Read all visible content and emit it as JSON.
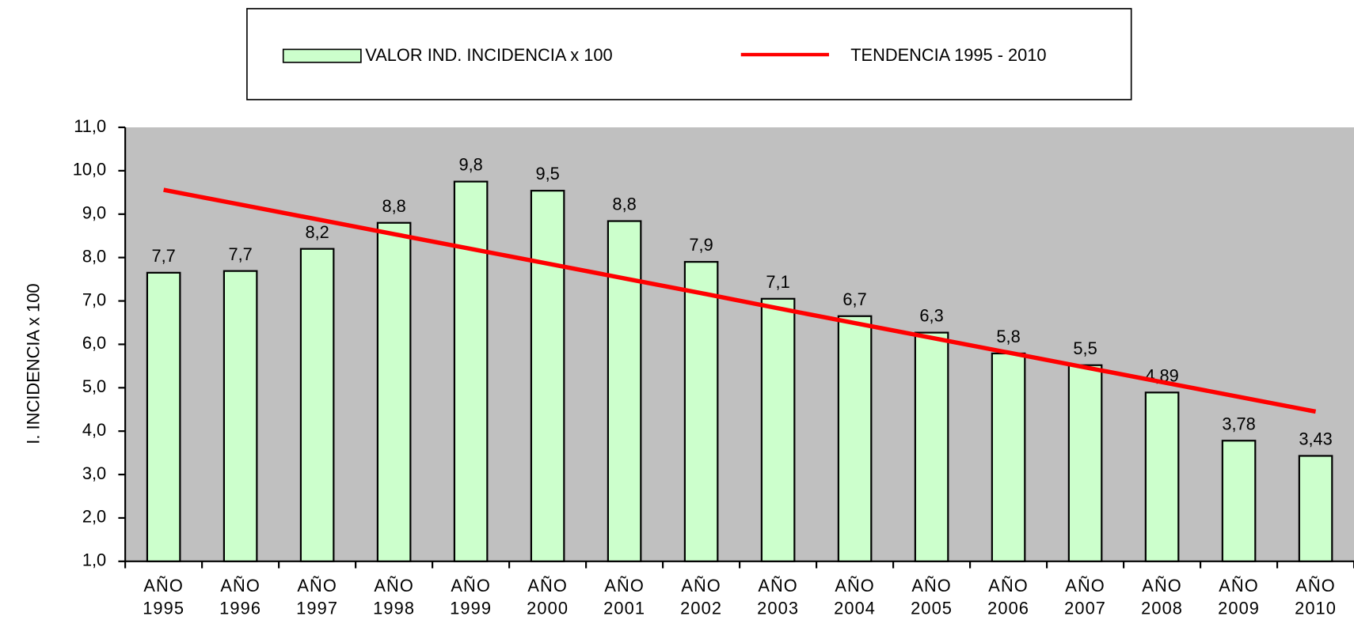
{
  "chart_data": {
    "type": "bar",
    "y_label": "I. INCIDENCIA x 100",
    "categories": [
      "AÑO 1995",
      "AÑO 1996",
      "AÑO 1997",
      "AÑO 1998",
      "AÑO 1999",
      "AÑO 2000",
      "AÑO 2001",
      "AÑO 2002",
      "AÑO 2003",
      "AÑO 2004",
      "AÑO 2005",
      "AÑO 2006",
      "AÑO 2007",
      "AÑO 2008",
      "AÑO 2009",
      "AÑO 2010"
    ],
    "series": [
      {
        "name": "VALOR IND. INCIDENCIA x 100",
        "type": "bar",
        "color": "#ccffcc",
        "values": [
          7.65,
          7.69,
          8.2,
          8.8,
          9.75,
          9.54,
          8.84,
          7.9,
          7.05,
          6.65,
          6.27,
          5.79,
          5.52,
          4.89,
          3.78,
          3.43
        ],
        "value_labels": [
          "7,7",
          "7,7",
          "8,2",
          "8,8",
          "9,8",
          "9,5",
          "8,8",
          "7,9",
          "7,1",
          "6,7",
          "6,3",
          "5,8",
          "5,5",
          "4,89",
          "3,78",
          "3,43"
        ]
      },
      {
        "name": "TENDENCIA 1995 - 2010",
        "type": "line",
        "color": "#ff0000",
        "values": [
          9.56,
          9.22,
          8.88,
          8.54,
          8.2,
          7.86,
          7.52,
          7.18,
          6.83,
          6.49,
          6.15,
          5.81,
          5.47,
          5.13,
          4.79,
          4.45
        ]
      }
    ],
    "ylim": [
      1,
      11
    ],
    "yticks": [
      {
        "value": 1,
        "label": "1,0"
      },
      {
        "value": 2,
        "label": "2,0"
      },
      {
        "value": 3,
        "label": "3,0"
      },
      {
        "value": 4,
        "label": "4,0"
      },
      {
        "value": 5,
        "label": "5,0"
      },
      {
        "value": 6,
        "label": "6,0"
      },
      {
        "value": 7,
        "label": "7,0"
      },
      {
        "value": 8,
        "label": "8,0"
      },
      {
        "value": 9,
        "label": "9,0"
      },
      {
        "value": 10,
        "label": "10,0"
      },
      {
        "value": 11,
        "label": "11,0"
      }
    ],
    "plot_background": "#c0c0c0"
  }
}
